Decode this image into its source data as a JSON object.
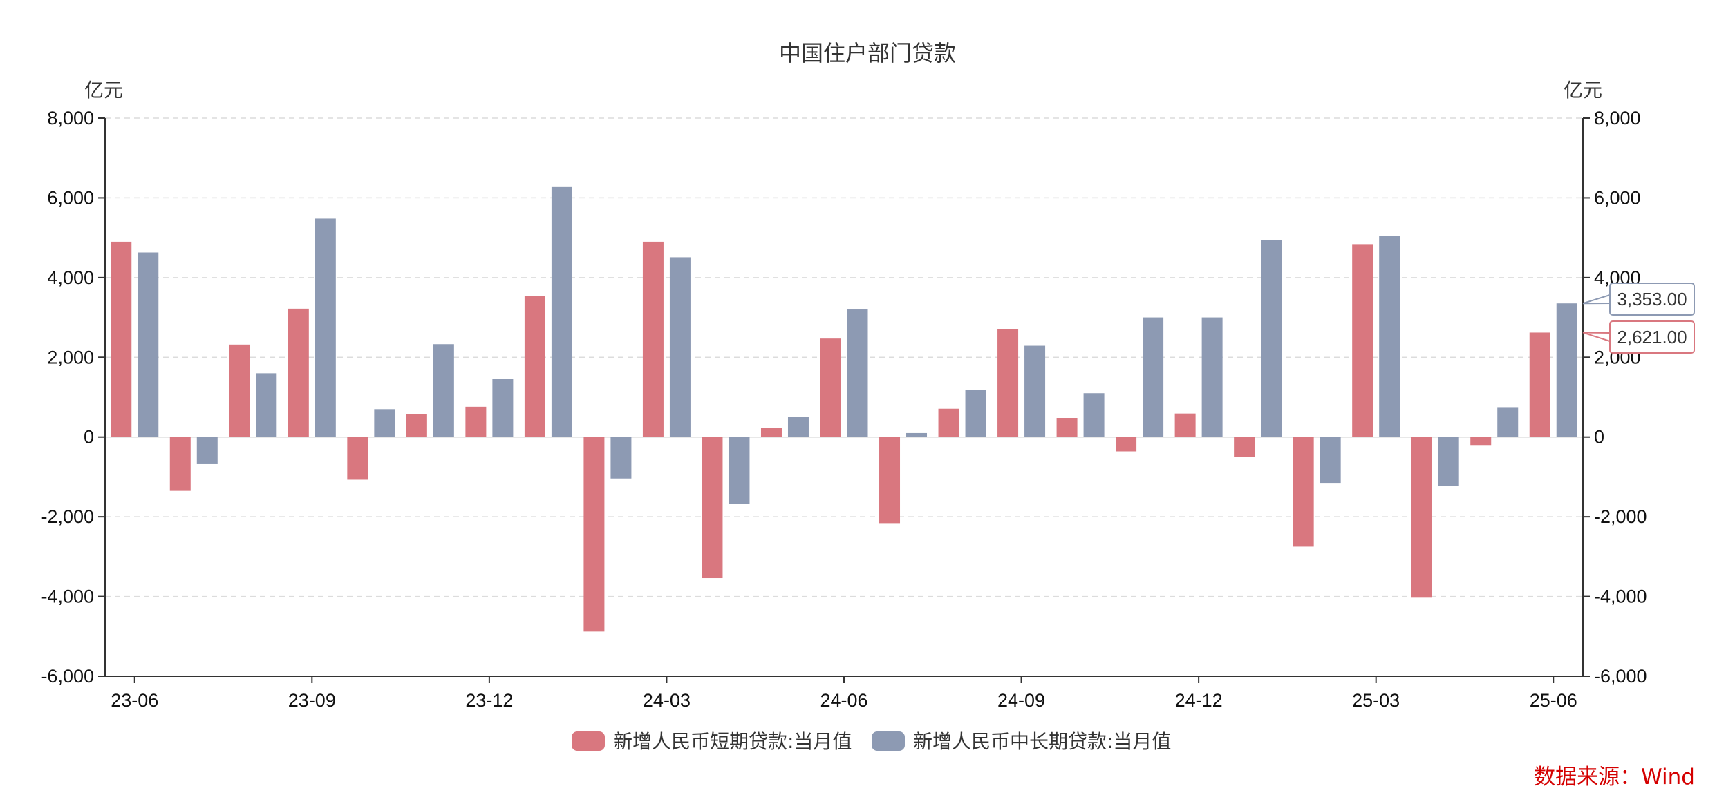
{
  "chart_data": {
    "type": "bar",
    "title": "中国住户部门贷款",
    "ylabel_left": "亿元",
    "ylabel_right": "亿元",
    "ylim": [
      -6000,
      8000
    ],
    "yticks": [
      8000,
      6000,
      4000,
      2000,
      0,
      -2000,
      -4000,
      -6000
    ],
    "ytick_labels": [
      "8,000",
      "6,000",
      "4,000",
      "2,000",
      "0",
      "-2,000",
      "-4,000",
      "-6,000"
    ],
    "grid": true,
    "legend_position": "bottom",
    "categories": [
      "23-06",
      "23-07",
      "23-08",
      "23-09",
      "23-10",
      "23-11",
      "23-12",
      "24-01",
      "24-02",
      "24-03",
      "24-04",
      "24-05",
      "24-06",
      "24-07",
      "24-08",
      "24-09",
      "24-10",
      "24-11",
      "24-12",
      "25-01",
      "25-02",
      "25-03",
      "25-04",
      "25-05",
      "25-06"
    ],
    "xtick_labels": [
      "23-06",
      "23-09",
      "23-12",
      "24-03",
      "24-06",
      "24-09",
      "24-12",
      "25-03",
      "25-06"
    ],
    "series": [
      {
        "name": "新增人民币短期贷款:当月值",
        "color": "#d9777f",
        "values": [
          4900,
          -1350,
          2320,
          3220,
          -1070,
          580,
          760,
          3530,
          -4880,
          4900,
          -3540,
          230,
          2470,
          -2160,
          710,
          2700,
          480,
          -360,
          590,
          -500,
          -2750,
          4840,
          -4030,
          -200,
          2621
        ]
      },
      {
        "name": "新增人民币中长期贷款:当月值",
        "color": "#8d9ab3",
        "values": [
          4630,
          -680,
          1600,
          5480,
          700,
          2330,
          1460,
          6270,
          -1040,
          4510,
          -1680,
          510,
          3200,
          100,
          1190,
          2290,
          1100,
          3000,
          3000,
          4940,
          -1150,
          5040,
          -1230,
          750,
          3353
        ]
      }
    ],
    "callouts": [
      {
        "series": 1,
        "label": "3,353.00",
        "color": "#8d9ab3"
      },
      {
        "series": 0,
        "label": "2,621.00",
        "color": "#d9777f"
      }
    ],
    "source": "数据来源：Wind"
  }
}
